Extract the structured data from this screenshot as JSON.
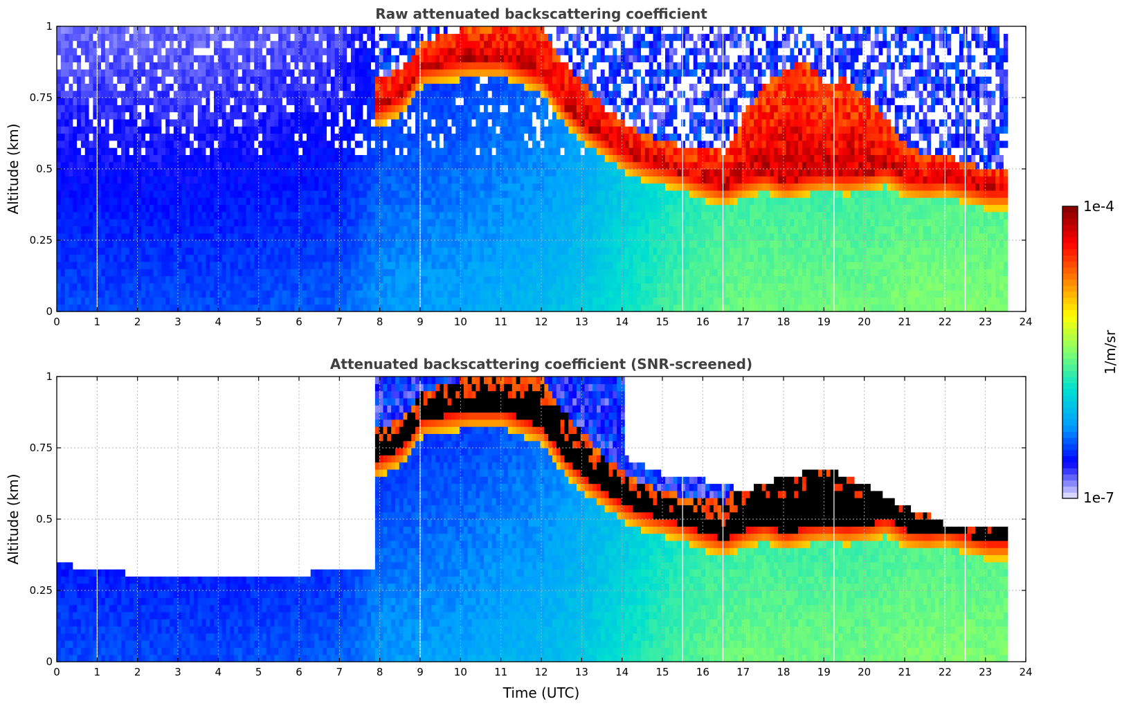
{
  "colors": {
    "colormap": [
      "#ebebff",
      "#0000ff",
      "#00a0ff",
      "#00e0d0",
      "#80ff70",
      "#ffff00",
      "#ff8000",
      "#ff0000",
      "#800000"
    ],
    "saturated_high_panel2": "#000000",
    "title_color": "#404040"
  },
  "chart_data": [
    {
      "type": "heatmap",
      "title": "Raw attenuated backscattering coefficient",
      "xlabel": "",
      "ylabel": "Altitude (km)",
      "xlim": [
        0,
        24
      ],
      "ylim": [
        0,
        1
      ],
      "xticks": [
        "0",
        "1",
        "2",
        "3",
        "4",
        "5",
        "6",
        "7",
        "8",
        "9",
        "10",
        "11",
        "12",
        "13",
        "14",
        "15",
        "16",
        "17",
        "18",
        "19",
        "20",
        "21",
        "22",
        "23",
        "24"
      ],
      "yticks": [
        "0",
        "0.25",
        "0.5",
        "0.75",
        "1"
      ],
      "data_end_time": 23.55,
      "grid": true,
      "cloud_base_km": {
        "time": [
          7.8,
          8.5,
          9.0,
          10.2,
          11.0,
          12.0,
          12.5,
          13.0,
          13.5,
          14.0,
          14.5,
          15.0,
          15.5,
          16.0,
          16.5,
          17.0,
          17.5,
          18.0,
          18.5,
          19.0,
          19.5,
          20.0,
          20.5,
          21.0,
          21.5,
          22.0,
          22.5,
          23.0
        ],
        "altitude": [
          0.7,
          0.75,
          0.85,
          0.88,
          0.88,
          0.82,
          0.72,
          0.65,
          0.6,
          0.55,
          0.52,
          0.5,
          0.48,
          0.45,
          0.43,
          0.46,
          0.48,
          0.45,
          0.47,
          0.48,
          0.47,
          0.48,
          0.5,
          0.46,
          0.45,
          0.46,
          0.44,
          0.42
        ]
      },
      "cloud_top_km": {
        "time": [
          7.8,
          8.5,
          9.0,
          10.2,
          11.0,
          12.0,
          12.5,
          13.0,
          13.5,
          14.0,
          14.5,
          15.0,
          15.5,
          16.0,
          16.5,
          17.0,
          17.5,
          18.0,
          18.5,
          19.0,
          19.5,
          20.0,
          20.5,
          21.0,
          21.5,
          22.0,
          22.5,
          23.0
        ],
        "altitude": [
          0.82,
          0.85,
          0.95,
          1.0,
          1.0,
          1.0,
          0.88,
          0.8,
          0.72,
          0.66,
          0.62,
          0.6,
          0.58,
          0.57,
          0.56,
          0.7,
          0.8,
          0.85,
          0.88,
          0.8,
          0.82,
          0.75,
          0.68,
          0.58,
          0.55,
          0.55,
          0.52,
          0.5
        ]
      },
      "background_log10": {
        "time": [
          0,
          4,
          7,
          8,
          10,
          12,
          13,
          14,
          15,
          16,
          17,
          18,
          19,
          20,
          21,
          22,
          23,
          23.55
        ],
        "level": [
          -6.45,
          -6.45,
          -6.4,
          -6.25,
          -6.2,
          -6.1,
          -6.0,
          -5.85,
          -5.7,
          -5.6,
          -5.55,
          -5.55,
          -5.55,
          -5.55,
          -5.5,
          -5.5,
          -5.5,
          -5.5
        ]
      },
      "missing_profiles_hours": [
        1.0,
        9.0,
        15.5,
        16.5,
        19.25,
        22.0,
        22.5
      ]
    },
    {
      "type": "heatmap",
      "title": "Attenuated backscattering coefficient (SNR-screened)",
      "xlabel": "Time (UTC)",
      "ylabel": "Altitude (km)",
      "xlim": [
        0,
        24
      ],
      "ylim": [
        0,
        1
      ],
      "xticks": [
        "0",
        "1",
        "2",
        "3",
        "4",
        "5",
        "6",
        "7",
        "8",
        "9",
        "10",
        "11",
        "12",
        "13",
        "14",
        "15",
        "16",
        "17",
        "18",
        "19",
        "20",
        "21",
        "22",
        "23",
        "24"
      ],
      "yticks": [
        "0",
        "0.25",
        "0.5",
        "0.75",
        "1"
      ],
      "data_end_time": 23.55,
      "grid": true,
      "screened_top_km": {
        "time": [
          0,
          0.3,
          0.5,
          1.0,
          1.3,
          1.7,
          2.0,
          2.3,
          2.6,
          3.0,
          3.5,
          3.7,
          4.0,
          5.0,
          6.0,
          7.0,
          7.8
        ],
        "altitude": [
          0.34,
          0.34,
          0.33,
          0.32,
          0.32,
          0.31,
          0.31,
          0.31,
          0.3,
          0.3,
          0.29,
          0.3,
          0.3,
          0.3,
          0.31,
          0.32,
          0.33
        ]
      },
      "data_top_after_cloud_km": {
        "time": [
          14.0,
          15.0,
          16.0,
          17.0,
          18.0,
          19.0,
          20.0,
          21.0,
          21.5,
          22.0,
          22.5,
          23.0,
          23.55
        ],
        "altitude": [
          0.72,
          0.66,
          0.64,
          0.6,
          0.65,
          0.68,
          0.62,
          0.54,
          0.52,
          0.48,
          0.48,
          0.47,
          0.47
        ]
      }
    }
  ],
  "colorbar": {
    "label": "1/m/sr",
    "max_label": "1e-4",
    "min_label": "1e-7",
    "log10_range": [
      -7,
      -4
    ]
  }
}
